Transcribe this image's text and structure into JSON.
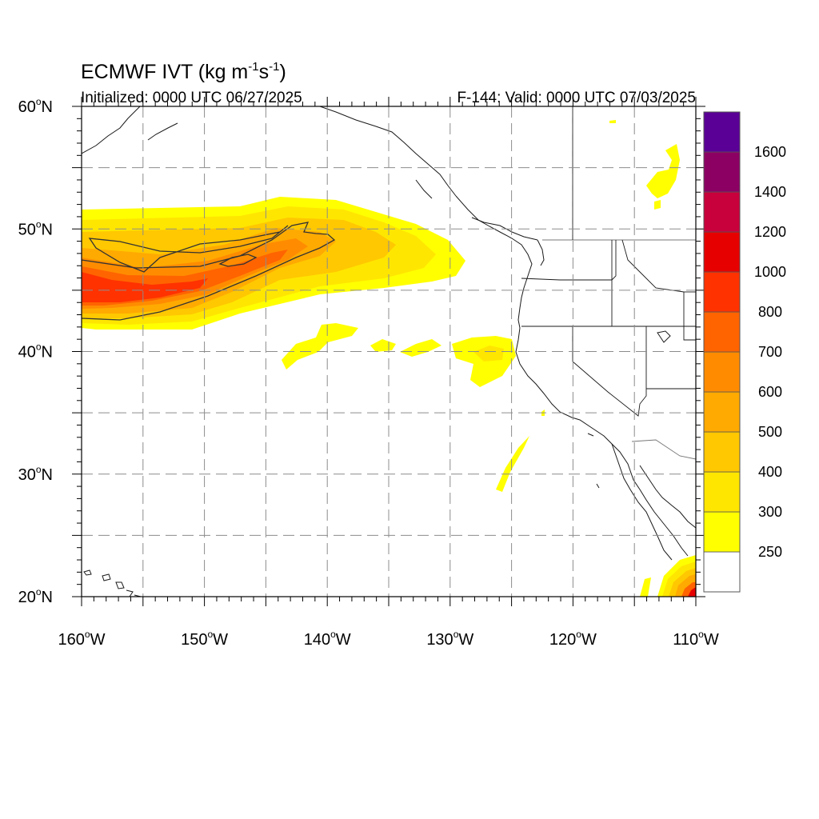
{
  "title": {
    "main_prefix": "ECMWF IVT (kg m",
    "exp1": "-1",
    "main_mid": "s",
    "exp2": "-1",
    "main_suffix": ")",
    "initialized": "Initialized: 0000 UTC 06/27/2025",
    "valid": "F-144: Valid: 0000 UTC 07/03/2025"
  },
  "axes": {
    "lon_range": [
      -160,
      -110
    ],
    "lat_range": [
      20,
      60
    ],
    "x_ticks": [
      {
        "lon": -160,
        "num": "160",
        "hem": "W"
      },
      {
        "lon": -150,
        "num": "150",
        "hem": "W"
      },
      {
        "lon": -140,
        "num": "140",
        "hem": "W"
      },
      {
        "lon": -130,
        "num": "130",
        "hem": "W"
      },
      {
        "lon": -120,
        "num": "120",
        "hem": "W"
      },
      {
        "lon": -110,
        "num": "110",
        "hem": "W"
      }
    ],
    "y_ticks": [
      {
        "lat": 20,
        "num": "20",
        "hem": "N"
      },
      {
        "lat": 30,
        "num": "30",
        "hem": "N"
      },
      {
        "lat": 40,
        "num": "40",
        "hem": "N"
      },
      {
        "lat": 50,
        "num": "50",
        "hem": "N"
      },
      {
        "lat": 60,
        "num": "60",
        "hem": "N"
      }
    ],
    "degree_symbol": "o",
    "grid_spacing_deg": 5
  },
  "colorbar": {
    "levels": [
      {
        "label": "",
        "color": "#ffffff"
      },
      {
        "label": "250",
        "color": "#ffff00"
      },
      {
        "label": "300",
        "color": "#ffe600"
      },
      {
        "label": "400",
        "color": "#ffc800"
      },
      {
        "label": "500",
        "color": "#ffaa00"
      },
      {
        "label": "600",
        "color": "#ff8c00"
      },
      {
        "label": "700",
        "color": "#ff6400"
      },
      {
        "label": "800",
        "color": "#ff3200"
      },
      {
        "label": "1000",
        "color": "#e60000"
      },
      {
        "label": "1200",
        "color": "#c8003c"
      },
      {
        "label": "1400",
        "color": "#8c0064"
      },
      {
        "label": "1600",
        "color": "#5a0096"
      }
    ]
  },
  "chart_data": {
    "type": "heatmap",
    "variable": "IVT",
    "units": "kg m-1 s-1",
    "lon_range": [
      -160,
      -110
    ],
    "lat_range": [
      20,
      60
    ],
    "features": [
      {
        "feature": "atmospheric river core",
        "max_ivt": 800,
        "approx_lon_range": [
          -160,
          -140
        ],
        "approx_lat_range": [
          43,
          50
        ]
      },
      {
        "feature": "atmospheric river envelope",
        "min_ivt": 250,
        "approx_lon_range": [
          -160,
          -129
        ],
        "approx_lat_range": [
          41.5,
          52.5
        ]
      },
      {
        "feature": "scattered filaments",
        "max_ivt": 300,
        "approx_lon_range": [
          -144,
          -125
        ],
        "approx_lat_range": [
          37.5,
          42.5
        ]
      },
      {
        "feature": "southern plume",
        "max_ivt": 1000,
        "approx_lon_range": [
          -114,
          -110
        ],
        "approx_lat_range": [
          20,
          23.5
        ]
      }
    ]
  }
}
